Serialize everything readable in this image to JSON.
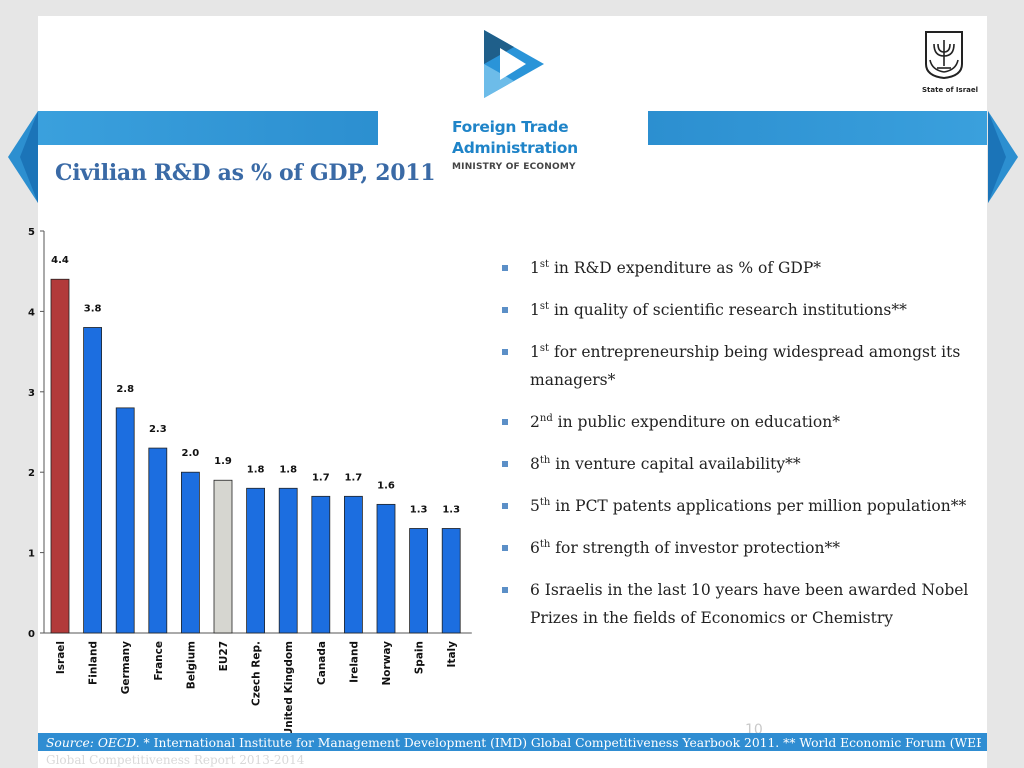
{
  "header": {
    "brand_line1": "Foreign Trade",
    "brand_line2": "Administration",
    "brand_line3": "MINISTRY OF ECONOMY",
    "state_label": "State of Israel"
  },
  "title": "Civilian R&D as % of GDP, 2011",
  "colors": {
    "israel_bar": "#b23a3a",
    "eu27_bar": "#d6d6d0",
    "default_bar": "#1c6ee0",
    "accent": "#2f8dd2",
    "title": "#3a6aa6"
  },
  "chart_data": {
    "type": "bar",
    "title": "Civilian R&D as % of GDP, 2011",
    "categories": [
      "Israel",
      "Finland",
      "Germany",
      "France",
      "Belgium",
      "EU27",
      "Czech Rep.",
      "United Kingdom",
      "Canada",
      "Ireland",
      "Norway",
      "Spain",
      "Italy"
    ],
    "values": [
      4.4,
      3.8,
      2.8,
      2.3,
      2.0,
      1.9,
      1.8,
      1.8,
      1.7,
      1.7,
      1.6,
      1.3,
      1.3
    ],
    "labels": [
      "4.4",
      "3.8",
      "2.8",
      "2.3",
      "2.0",
      "1.9",
      "1.8",
      "1.8",
      "1.7",
      "1.7",
      "1.6",
      "1.3",
      "1.3"
    ],
    "bar_colors": [
      "israel",
      "default",
      "default",
      "default",
      "default",
      "eu27",
      "default",
      "default",
      "default",
      "default",
      "default",
      "default",
      "default"
    ],
    "ylim": [
      0,
      5
    ],
    "yticks": [
      0,
      1,
      2,
      3,
      4,
      5
    ],
    "xlabel": "",
    "ylabel": "",
    "grid": false
  },
  "bullets": [
    {
      "rank": "1",
      "suffix": "st",
      "text": " in R&D expenditure as % of GDP*"
    },
    {
      "rank": "1",
      "suffix": "st",
      "text": " in quality of scientific research institutions**"
    },
    {
      "rank": "1",
      "suffix": "st",
      "text": " for entrepreneurship being widespread amongst its managers*"
    },
    {
      "rank": "2",
      "suffix": "nd",
      "text": " in public expenditure on education*"
    },
    {
      "rank": "8",
      "suffix": "th",
      "text": " in venture capital availability**"
    },
    {
      "rank": "5",
      "suffix": "th",
      "text": " in PCT patents applications per million population**"
    },
    {
      "rank": "6",
      "suffix": "th",
      "text": " for strength of investor protection**"
    },
    {
      "rank": "",
      "suffix": "",
      "text": "6 Israelis in the last 10 years have been awarded Nobel Prizes in the fields of Economics or Chemistry"
    }
  ],
  "footer": {
    "source_label": "Source: OECD.",
    "source_rest": " * International Institute for Management Development (IMD) Global Competitiveness Yearbook 2011. ** World Economic Forum (WEF)",
    "line2": "Global Competitiveness Report 2013-2014",
    "page_number": "10"
  }
}
